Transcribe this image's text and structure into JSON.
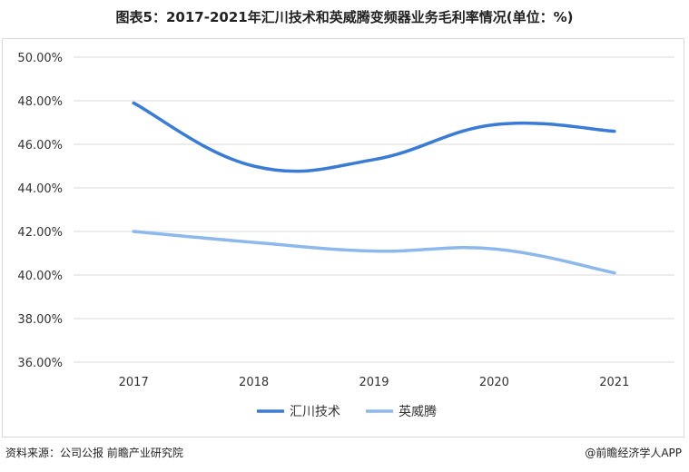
{
  "title": "图表5：2017-2021年汇川技术和英威腾变频器业务毛利率情况(单位：%)",
  "chart_data": {
    "type": "line",
    "categories": [
      "2017",
      "2018",
      "2019",
      "2020",
      "2021"
    ],
    "series": [
      {
        "name": "汇川技术",
        "values": [
          47.9,
          45.0,
          45.3,
          46.9,
          46.6
        ],
        "color": "#3a7bd5"
      },
      {
        "name": "英威腾",
        "values": [
          42.0,
          41.5,
          41.1,
          41.2,
          40.1
        ],
        "color": "#8db8ec"
      }
    ],
    "yticks": [
      "36.00%",
      "38.00%",
      "40.00%",
      "42.00%",
      "44.00%",
      "46.00%",
      "48.00%",
      "50.00%"
    ],
    "ylim": [
      36,
      50
    ],
    "grid": true,
    "legend_position": "bottom"
  },
  "footer": {
    "source": "资料来源：公司公报 前瞻产业研究院",
    "brand": "@前瞻经济学人APP"
  }
}
